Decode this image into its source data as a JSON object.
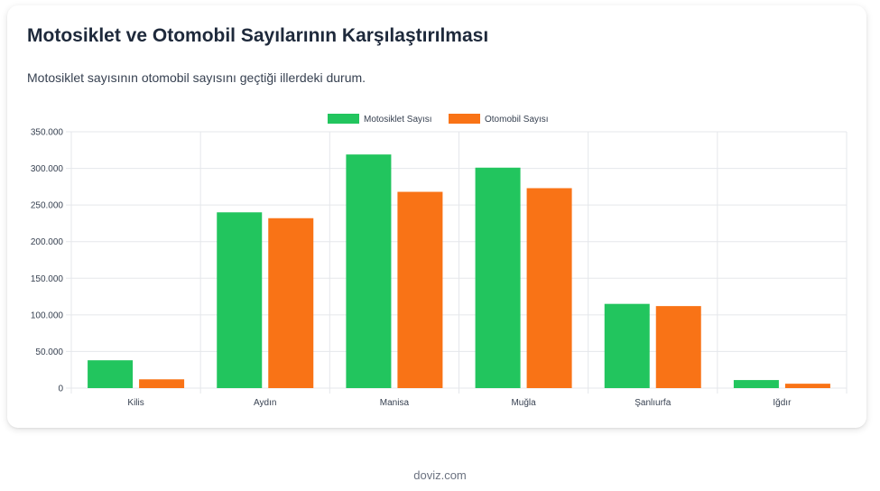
{
  "header": {
    "title": "Motosiklet ve Otomobil Sayılarının Karşılaştırılması",
    "subtitle": "Motosiklet sayısının otomobil sayısını geçtiği illerdeki durum."
  },
  "footer": {
    "text": "doviz.com"
  },
  "chart_data": {
    "type": "bar",
    "categories": [
      "Kilis",
      "Aydın",
      "Manisa",
      "Muğla",
      "Şanlıurfa",
      "Iğdır"
    ],
    "series": [
      {
        "name": "Motosiklet Sayısı",
        "color": "#22c55e",
        "values": [
          38000,
          240000,
          319000,
          301000,
          115000,
          11000
        ]
      },
      {
        "name": "Otomobil Sayısı",
        "color": "#f97316",
        "values": [
          12000,
          232000,
          268000,
          273000,
          112000,
          6000
        ]
      }
    ],
    "ylim": [
      0,
      350000
    ],
    "yticks": [
      0,
      50000,
      100000,
      150000,
      200000,
      250000,
      300000,
      350000
    ],
    "ytick_labels": [
      "0",
      "50.000",
      "100.000",
      "150.000",
      "200.000",
      "250.000",
      "300.000",
      "350.000"
    ],
    "grid": true,
    "legend_position": "top-center"
  }
}
